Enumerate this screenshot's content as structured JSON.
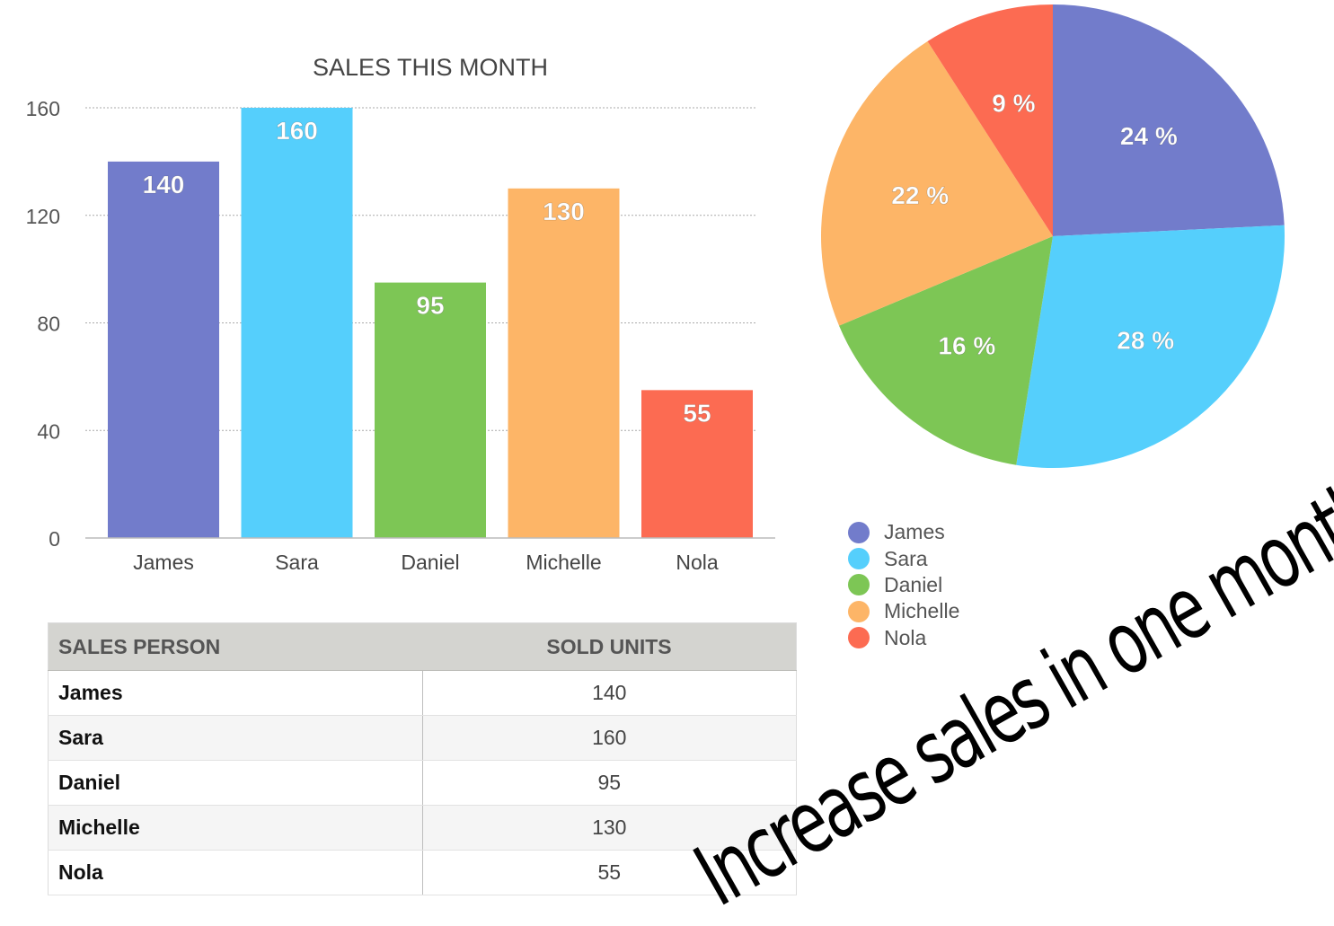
{
  "chart_data": [
    {
      "type": "bar",
      "title": "SALES THIS MONTH",
      "categories": [
        "James",
        "Sara",
        "Daniel",
        "Michelle",
        "Nola"
      ],
      "values": [
        140,
        160,
        95,
        130,
        55
      ],
      "value_labels": [
        "140",
        "160",
        "95",
        "130",
        "55"
      ],
      "y_ticks": [
        0,
        40,
        80,
        120,
        160
      ],
      "ylim": [
        0,
        160
      ],
      "grid": true,
      "colors": [
        "#727ccb",
        "#55cffc",
        "#7dc655",
        "#fdb567",
        "#fc6b52"
      ]
    },
    {
      "type": "pie",
      "categories": [
        "James",
        "Sara",
        "Daniel",
        "Michelle",
        "Nola"
      ],
      "values": [
        24,
        28,
        16,
        22,
        9
      ],
      "value_labels": [
        "24 %",
        "28 %",
        "16 %",
        "22 %",
        "9 %"
      ],
      "colors": [
        "#727ccb",
        "#55cffc",
        "#7dc655",
        "#fdb567",
        "#fc6b52"
      ],
      "legend": "bottom-left",
      "legend_labels": [
        "James",
        "Sara",
        "Daniel",
        "Michelle",
        "Nola"
      ]
    }
  ],
  "table": {
    "headers": [
      "SALES PERSON",
      "SOLD UNITS"
    ],
    "rows": [
      {
        "person": "James",
        "units": "140"
      },
      {
        "person": "Sara",
        "units": "160"
      },
      {
        "person": "Daniel",
        "units": "95"
      },
      {
        "person": "Michelle",
        "units": "130"
      },
      {
        "person": "Nola",
        "units": "55"
      }
    ]
  },
  "slogan": "Increase sales in one month"
}
